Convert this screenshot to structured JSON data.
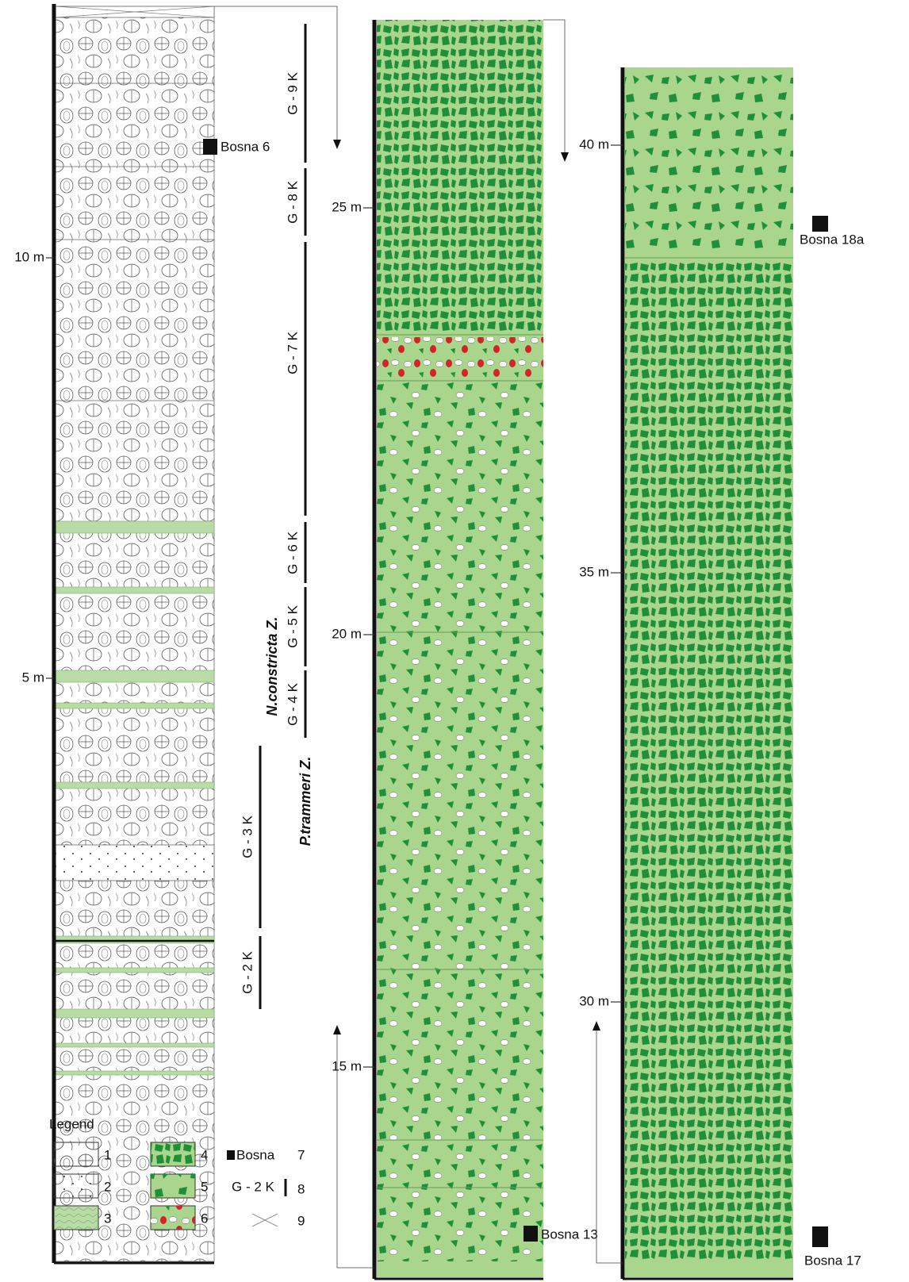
{
  "columns": [
    {
      "scale": [
        "10 m",
        "5 m"
      ],
      "samples": [
        "Bosna 6"
      ]
    },
    {
      "scale": [
        "25 m",
        "20 m",
        "15 m"
      ],
      "samples": [
        "Bosna 13"
      ]
    },
    {
      "scale": [
        "40 m",
        "35 m",
        "30 m"
      ],
      "samples": [
        "Bosna 18a",
        "Bosna 17"
      ]
    }
  ],
  "units": [
    "G - 9 K",
    "G - 8 K",
    "G - 7 K",
    "G - 6 K",
    "G - 5 K",
    "G - 4 K",
    "G - 3 K",
    "G - 2 K"
  ],
  "zones": [
    "N.constricta Z.",
    "P.trammeri Z."
  ],
  "legend": {
    "title": "Legend",
    "items": [
      "1",
      "2",
      "3",
      "4",
      "5",
      "6",
      "7",
      "8",
      "9"
    ],
    "sample_symbol": "Bosna",
    "unit_symbol": "G - 2 K"
  }
}
